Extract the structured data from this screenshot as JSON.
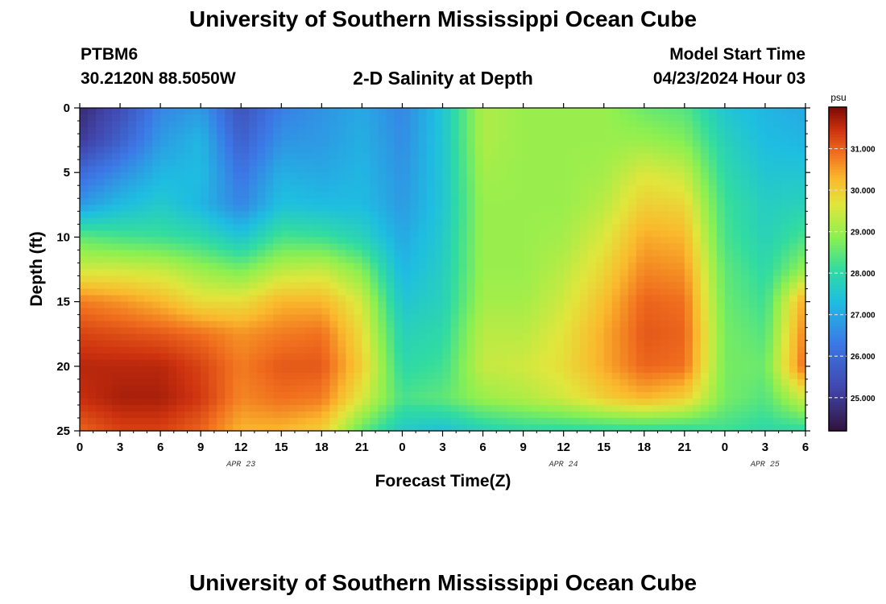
{
  "header": {
    "title": "University of Southern Mississippi Ocean Cube",
    "station": "PTBM6",
    "coordinates": "30.2120N  88.5050W",
    "subtitle": "2-D Salinity at Depth",
    "model_start_label": "Model Start Time",
    "model_start_value": "04/23/2024 Hour 03"
  },
  "footer": {
    "title": "University of Southern Mississippi Ocean Cube"
  },
  "chart_data": {
    "type": "heatmap",
    "title": "2-D Salinity at Depth",
    "xlabel": "Forecast Time(Z)",
    "ylabel": "Depth (ft)",
    "x_range_hours": [
      0,
      54
    ],
    "y_range_ft": [
      0,
      25
    ],
    "x_ticks": [
      "0",
      "3",
      "6",
      "9",
      "12",
      "15",
      "18",
      "21",
      "0",
      "3",
      "6",
      "9",
      "12",
      "15",
      "18",
      "21",
      "0",
      "3",
      "6"
    ],
    "x_tick_hours": [
      0,
      3,
      6,
      9,
      12,
      15,
      18,
      21,
      24,
      27,
      30,
      33,
      36,
      39,
      42,
      45,
      48,
      51,
      54
    ],
    "date_labels": [
      {
        "text": "APR 23",
        "hour": 12
      },
      {
        "text": "APR 24",
        "hour": 36
      },
      {
        "text": "APR 25",
        "hour": 51
      }
    ],
    "y_ticks": [
      "0",
      "5",
      "10",
      "15",
      "20",
      "25"
    ],
    "y_tick_values": [
      0,
      5,
      10,
      15,
      20,
      25
    ],
    "colorbar": {
      "unit": "psu",
      "min": 24.2,
      "max": 32.0,
      "tick_labels": [
        "31.000",
        "30.000",
        "29.000",
        "28.000",
        "27.000",
        "26.000",
        "25.000"
      ],
      "tick_values": [
        31,
        30,
        29,
        28,
        27,
        26,
        25
      ]
    },
    "grid_note": "salinity (psu) sampled every 3 forecast hours at depths 0-25 ft",
    "depths_ft": [
      0,
      2.5,
      5,
      7.5,
      10,
      12.5,
      15,
      17.5,
      20,
      22.5,
      25
    ],
    "salinity_psu": [
      [
        24.7,
        25.4,
        26.5,
        26.8,
        25.5,
        26.4,
        26.7,
        27.0,
        26.5,
        27.5,
        29.2,
        29.0,
        29.0,
        29.0,
        28.6,
        28.4,
        27.5,
        27.2,
        27.0
      ],
      [
        25.0,
        25.8,
        26.8,
        27.2,
        25.8,
        26.7,
        26.8,
        27.1,
        26.6,
        27.5,
        29.2,
        29.0,
        29.0,
        29.0,
        29.0,
        28.8,
        27.8,
        27.3,
        27.2
      ],
      [
        26.0,
        26.6,
        27.2,
        27.3,
        26.2,
        27.1,
        27.0,
        27.2,
        26.7,
        27.5,
        29.1,
        29.0,
        29.0,
        29.1,
        29.6,
        29.4,
        28.0,
        27.5,
        27.5
      ],
      [
        26.8,
        27.3,
        27.6,
        27.2,
        26.5,
        27.4,
        27.3,
        27.3,
        26.8,
        27.5,
        29.0,
        29.0,
        29.0,
        29.3,
        30.0,
        29.9,
        28.2,
        27.7,
        27.8
      ],
      [
        28.5,
        28.3,
        28.2,
        28.0,
        27.5,
        28.3,
        28.2,
        27.8,
        27.0,
        27.6,
        29.0,
        29.0,
        29.1,
        29.6,
        30.4,
        30.3,
        28.3,
        27.8,
        28.3
      ],
      [
        29.5,
        29.5,
        29.4,
        29.0,
        28.7,
        29.3,
        29.4,
        28.8,
        27.2,
        27.7,
        29.0,
        29.0,
        29.3,
        29.9,
        30.7,
        30.6,
        28.5,
        28.0,
        29.0
      ],
      [
        30.8,
        30.6,
        30.3,
        29.8,
        29.8,
        30.3,
        30.3,
        29.5,
        27.5,
        27.8,
        29.1,
        29.1,
        29.5,
        30.2,
        31.0,
        30.9,
        28.6,
        28.2,
        30.5
      ],
      [
        31.3,
        31.2,
        31.1,
        30.9,
        30.6,
        30.8,
        30.9,
        29.8,
        27.8,
        28.0,
        29.3,
        29.3,
        29.7,
        30.4,
        31.1,
        31.0,
        28.7,
        28.4,
        30.8
      ],
      [
        31.6,
        31.6,
        31.6,
        31.3,
        30.8,
        31.1,
        31.1,
        30.0,
        28.0,
        28.2,
        29.4,
        29.5,
        29.8,
        30.4,
        31.0,
        30.9,
        28.7,
        28.6,
        31.0
      ],
      [
        31.5,
        31.7,
        31.7,
        31.4,
        30.7,
        30.9,
        30.8,
        29.6,
        28.3,
        28.5,
        29.0,
        29.2,
        29.5,
        30.0,
        30.3,
        30.0,
        28.7,
        28.4,
        29.5
      ],
      [
        31.0,
        31.3,
        31.3,
        31.0,
        30.3,
        30.3,
        30.0,
        28.5,
        27.6,
        27.4,
        27.8,
        28.0,
        28.0,
        28.0,
        28.0,
        28.0,
        28.2,
        28.0,
        28.0
      ]
    ]
  }
}
